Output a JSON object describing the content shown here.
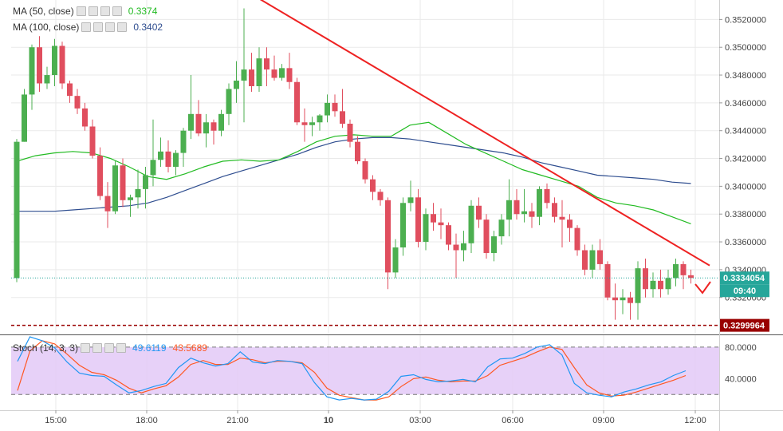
{
  "chart_data": {
    "type": "candlestick",
    "price": {
      "ylim": [
        0.3294,
        0.3534
      ],
      "y_ticks": [
        "0.3320000",
        "0.3340000",
        "0.3360000",
        "0.3380000",
        "0.3400000",
        "0.3420000",
        "0.3440000",
        "0.3460000",
        "0.3480000",
        "0.3500000",
        "0.3520000"
      ],
      "grid": true,
      "legend_position": "top-left",
      "ma_legend": [
        {
          "label": "MA (50, close)",
          "value": "0.3374",
          "color": "#22bb22"
        },
        {
          "label": "MA (100, close)",
          "value": "0.3402",
          "color": "#2e4d8f"
        }
      ],
      "candles": [
        [
          0.3334,
          0.3434,
          0.3331,
          0.3432
        ],
        [
          0.3432,
          0.347,
          0.3432,
          0.3466
        ],
        [
          0.3466,
          0.3502,
          0.3455,
          0.35
        ],
        [
          0.35,
          0.3508,
          0.3468,
          0.3474
        ],
        [
          0.3474,
          0.3486,
          0.347,
          0.348
        ],
        [
          0.348,
          0.3506,
          0.3472,
          0.3501
        ],
        [
          0.3501,
          0.3504,
          0.347,
          0.3474
        ],
        [
          0.3474,
          0.3476,
          0.346,
          0.3465
        ],
        [
          0.3465,
          0.347,
          0.3452,
          0.3456
        ],
        [
          0.3456,
          0.346,
          0.344,
          0.3443
        ],
        [
          0.3443,
          0.3448,
          0.342,
          0.3422
        ],
        [
          0.3422,
          0.3428,
          0.339,
          0.3393
        ],
        [
          0.3393,
          0.3403,
          0.337,
          0.3382
        ],
        [
          0.3382,
          0.3418,
          0.338,
          0.3415
        ],
        [
          0.3415,
          0.342,
          0.3385,
          0.339
        ],
        [
          0.339,
          0.3394,
          0.3378,
          0.3392
        ],
        [
          0.3392,
          0.3412,
          0.3384,
          0.3398
        ],
        [
          0.3398,
          0.3414,
          0.3384,
          0.3408
        ],
        [
          0.3408,
          0.3448,
          0.34,
          0.3419
        ],
        [
          0.3419,
          0.3435,
          0.3414,
          0.3425
        ],
        [
          0.3425,
          0.3433,
          0.341,
          0.3414
        ],
        [
          0.3414,
          0.3426,
          0.3408,
          0.3424
        ],
        [
          0.3424,
          0.3442,
          0.3414,
          0.344
        ],
        [
          0.344,
          0.348,
          0.3434,
          0.3452
        ],
        [
          0.3452,
          0.3462,
          0.3436,
          0.3438
        ],
        [
          0.3438,
          0.3452,
          0.3428,
          0.3446
        ],
        [
          0.3446,
          0.3448,
          0.343,
          0.344
        ],
        [
          0.344,
          0.3455,
          0.3436,
          0.3452
        ],
        [
          0.3452,
          0.3474,
          0.3444,
          0.347
        ],
        [
          0.347,
          0.349,
          0.346,
          0.3476
        ],
        [
          0.3476,
          0.3528,
          0.3446,
          0.3484
        ],
        [
          0.3484,
          0.3496,
          0.3468,
          0.3472
        ],
        [
          0.3472,
          0.35,
          0.3468,
          0.3492
        ],
        [
          0.3492,
          0.35,
          0.3472,
          0.3484
        ],
        [
          0.3484,
          0.3494,
          0.3476,
          0.3478
        ],
        [
          0.3478,
          0.3488,
          0.3476,
          0.3485
        ],
        [
          0.3485,
          0.3496,
          0.347,
          0.3475
        ],
        [
          0.3475,
          0.3478,
          0.3444,
          0.3446
        ],
        [
          0.3446,
          0.3456,
          0.3432,
          0.3444
        ],
        [
          0.3444,
          0.345,
          0.3436,
          0.3446
        ],
        [
          0.3446,
          0.3452,
          0.344,
          0.3451
        ],
        [
          0.3451,
          0.3466,
          0.3446,
          0.346
        ],
        [
          0.346,
          0.3466,
          0.345,
          0.3454
        ],
        [
          0.3454,
          0.347,
          0.3442,
          0.3445
        ],
        [
          0.3445,
          0.3448,
          0.3428,
          0.3432
        ],
        [
          0.3432,
          0.3436,
          0.3416,
          0.3418
        ],
        [
          0.3418,
          0.342,
          0.3402,
          0.3405
        ],
        [
          0.3405,
          0.3408,
          0.339,
          0.3396
        ],
        [
          0.3396,
          0.3398,
          0.3386,
          0.339
        ],
        [
          0.339,
          0.3392,
          0.3326,
          0.3338
        ],
        [
          0.3338,
          0.3362,
          0.3334,
          0.3356
        ],
        [
          0.3356,
          0.3392,
          0.335,
          0.3388
        ],
        [
          0.3388,
          0.3404,
          0.3382,
          0.3392
        ],
        [
          0.3392,
          0.3398,
          0.3356,
          0.336
        ],
        [
          0.336,
          0.3384,
          0.3354,
          0.338
        ],
        [
          0.338,
          0.3388,
          0.3368,
          0.3374
        ],
        [
          0.3374,
          0.3384,
          0.3362,
          0.3372
        ],
        [
          0.3372,
          0.3374,
          0.3354,
          0.3358
        ],
        [
          0.3358,
          0.3366,
          0.3334,
          0.3354
        ],
        [
          0.3354,
          0.3368,
          0.3346,
          0.3359
        ],
        [
          0.3359,
          0.339,
          0.3352,
          0.3386
        ],
        [
          0.3386,
          0.3392,
          0.337,
          0.3376
        ],
        [
          0.3376,
          0.338,
          0.3348,
          0.3352
        ],
        [
          0.3352,
          0.3368,
          0.3346,
          0.3364
        ],
        [
          0.3364,
          0.338,
          0.3358,
          0.3376
        ],
        [
          0.3376,
          0.3405,
          0.3364,
          0.339
        ],
        [
          0.339,
          0.3398,
          0.3376,
          0.338
        ],
        [
          0.338,
          0.3398,
          0.3374,
          0.3382
        ],
        [
          0.3382,
          0.3388,
          0.337,
          0.3378
        ],
        [
          0.3378,
          0.34,
          0.3372,
          0.3398
        ],
        [
          0.3398,
          0.3402,
          0.3384,
          0.3388
        ],
        [
          0.3388,
          0.3392,
          0.3374,
          0.3378
        ],
        [
          0.3378,
          0.339,
          0.3356,
          0.3376
        ],
        [
          0.3376,
          0.338,
          0.336,
          0.337
        ],
        [
          0.337,
          0.3372,
          0.335,
          0.3354
        ],
        [
          0.3354,
          0.3358,
          0.3336,
          0.334
        ],
        [
          0.334,
          0.3358,
          0.3334,
          0.3354
        ],
        [
          0.3354,
          0.3362,
          0.334,
          0.3344
        ],
        [
          0.3344,
          0.3346,
          0.3318,
          0.332
        ],
        [
          0.332,
          0.333,
          0.3304,
          0.3318
        ],
        [
          0.3318,
          0.3326,
          0.3308,
          0.332
        ],
        [
          0.332,
          0.3324,
          0.3304,
          0.3316
        ],
        [
          0.3316,
          0.3346,
          0.3304,
          0.3341
        ],
        [
          0.3341,
          0.3348,
          0.332,
          0.3326
        ],
        [
          0.3326,
          0.3338,
          0.332,
          0.3332
        ],
        [
          0.3332,
          0.334,
          0.332,
          0.3326
        ],
        [
          0.3326,
          0.334,
          0.3322,
          0.3334
        ],
        [
          0.3334,
          0.3348,
          0.3328,
          0.3344
        ],
        [
          0.3344,
          0.3346,
          0.3326,
          0.3336
        ],
        [
          0.3336,
          0.334,
          0.333,
          0.3334
        ]
      ],
      "ma50": [
        0.3418,
        0.3422,
        0.3424,
        0.3425,
        0.3424,
        0.342,
        0.3414,
        0.3407,
        0.3405,
        0.3409,
        0.3414,
        0.3418,
        0.3419,
        0.3418,
        0.3419,
        0.3425,
        0.3432,
        0.3436,
        0.3437,
        0.3436,
        0.3436,
        0.3444,
        0.3446,
        0.3438,
        0.343,
        0.3424,
        0.3418,
        0.3412,
        0.3408,
        0.3404,
        0.34,
        0.3392,
        0.3388,
        0.3386,
        0.3383,
        0.3378,
        0.3373
      ],
      "ma100": [
        0.3382,
        0.3382,
        0.3382,
        0.3383,
        0.3384,
        0.3385,
        0.3386,
        0.3388,
        0.3392,
        0.3397,
        0.3402,
        0.3407,
        0.3411,
        0.3415,
        0.3419,
        0.3423,
        0.3428,
        0.3432,
        0.3434,
        0.3435,
        0.3435,
        0.3434,
        0.3432,
        0.343,
        0.3428,
        0.3426,
        0.3424,
        0.3421,
        0.3417,
        0.3414,
        0.3411,
        0.3408,
        0.3407,
        0.3406,
        0.3405,
        0.3403,
        0.3402
      ],
      "trendline": {
        "from": 0.3555,
        "to": 0.3343,
        "color": "#ee2222"
      },
      "support_line": {
        "value": 0.3299964,
        "label": "0.3299964",
        "color": "#990000"
      },
      "last_price": {
        "value": 0.3334054,
        "label": "0.3334054",
        "countdown": "09:40",
        "color": "#26a69a"
      }
    },
    "stoch": {
      "label": "Stoch (14, 3, 3)",
      "k_value": "49.6119",
      "d_value": "43.5689",
      "k_color": "#2196f3",
      "d_color": "#ff5722",
      "ylim": [
        0,
        95
      ],
      "bands": [
        20,
        80
      ],
      "y_ticks": [
        "40.0000",
        "80.0000"
      ],
      "k": [
        62,
        93,
        88,
        79,
        61,
        47,
        44,
        43,
        32,
        22,
        25,
        30,
        34,
        54,
        66,
        60,
        56,
        59,
        74,
        61,
        59,
        63,
        62,
        59,
        35,
        17,
        13,
        15,
        13,
        14,
        24,
        43,
        45,
        39,
        36,
        37,
        39,
        36,
        55,
        65,
        66,
        72,
        80,
        83,
        70,
        34,
        22,
        19,
        17,
        23,
        27,
        32,
        36,
        44,
        50
      ],
      "d": [
        25,
        75,
        88,
        84,
        71,
        57,
        48,
        45,
        38,
        28,
        22,
        27,
        31,
        42,
        58,
        63,
        58,
        58,
        66,
        64,
        60,
        62,
        62,
        60,
        48,
        28,
        19,
        16,
        13,
        13,
        17,
        30,
        40,
        42,
        38,
        36,
        37,
        37,
        44,
        57,
        62,
        67,
        74,
        80,
        77,
        54,
        32,
        22,
        18,
        19,
        23,
        28,
        33,
        38,
        44
      ]
    },
    "x_ticks": [
      {
        "label": "15:00",
        "bold": false
      },
      {
        "label": "18:00",
        "bold": false
      },
      {
        "label": "21:00",
        "bold": false
      },
      {
        "label": "10",
        "bold": true
      },
      {
        "label": "03:00",
        "bold": false
      },
      {
        "label": "06:00",
        "bold": false
      },
      {
        "label": "09:00",
        "bold": false
      },
      {
        "label": "12:00",
        "bold": false
      }
    ],
    "colors": {
      "up": "#4caf50",
      "down": "#e04e5e",
      "grid": "#eaeaea",
      "stoch_band": "#e3c9f7"
    }
  }
}
